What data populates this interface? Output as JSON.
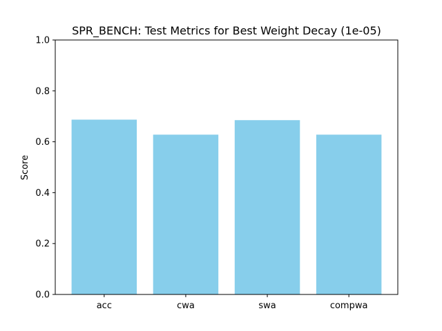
{
  "chart_data": {
    "type": "bar",
    "title": "SPR_BENCH: Test Metrics for Best Weight Decay (1e-05)",
    "xlabel": "",
    "ylabel": "Score",
    "categories": [
      "acc",
      "cwa",
      "swa",
      "compwa"
    ],
    "values": [
      0.687,
      0.628,
      0.685,
      0.628
    ],
    "ylim": [
      0,
      1.0
    ],
    "yticks": [
      "0.0",
      "0.2",
      "0.4",
      "0.6",
      "0.8",
      "1.0"
    ],
    "bar_color": "#87CEEB",
    "grid": false,
    "legend": "none"
  }
}
